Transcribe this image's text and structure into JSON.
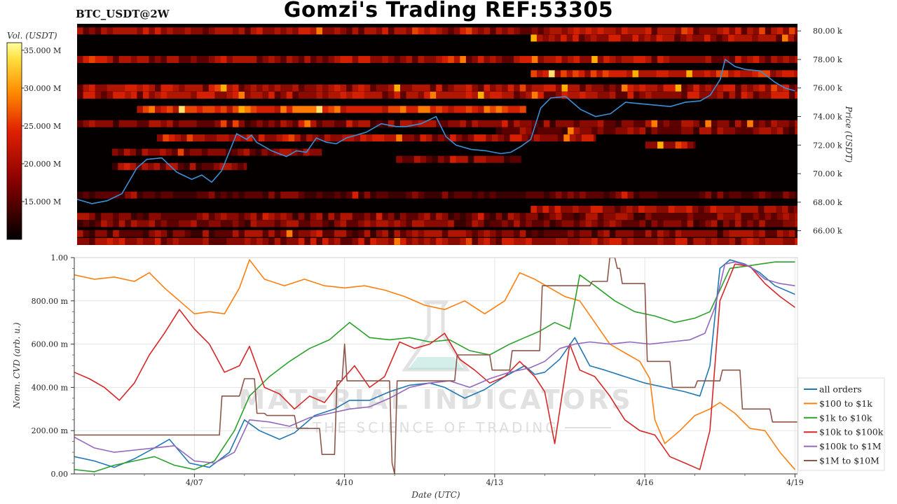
{
  "header": {
    "title": "Gomzi's Trading REF:53305",
    "pair": "BTC_USDT@2W"
  },
  "watermark": {
    "brand": "MATERIAL INDICATORS",
    "tagline": "THE SCIENCE OF TRADING"
  },
  "colors": {
    "all_orders": "#1f77b4",
    "b100_1k": "#ff7f0e",
    "b1k_10k": "#2ca02c",
    "b10k_100k": "#d62728",
    "b100k_1m": "#9467bd",
    "b1m_10m": "#8c564b",
    "price_line": "#3a8fd6",
    "heatmap_bg": "#050000"
  },
  "chart_data": [
    {
      "type": "heatmap",
      "name_panel": "orderbook-heatmap",
      "ylabel": "Price (USDT)",
      "ylim": [
        65000,
        80500
      ],
      "yticks": [
        66000,
        68000,
        70000,
        72000,
        74000,
        76000,
        78000,
        80000
      ],
      "ytick_labels": [
        "66.00 k",
        "68.00 k",
        "70.00 k",
        "72.00 k",
        "74.00 k",
        "76.00 k",
        "78.00 k",
        "80.00 k"
      ],
      "colorbar": {
        "label": "Vol. (USDT)",
        "range": [
          10,
          36
        ],
        "ticks": [
          15,
          20,
          25,
          30,
          35
        ],
        "tick_labels": [
          "15.000 M",
          "20.000 M",
          "25.000 M",
          "30.000 M",
          "35.000 M"
        ]
      },
      "xlim": [
        4.6,
        19.05
      ],
      "price_series": {
        "x": [
          4.6,
          4.9,
          5.2,
          5.5,
          5.8,
          6.0,
          6.3,
          6.6,
          6.9,
          7.1,
          7.3,
          7.5,
          7.8,
          8.0,
          8.1,
          8.2,
          8.5,
          8.8,
          9.0,
          9.2,
          9.4,
          9.6,
          9.8,
          10.0,
          10.2,
          10.4,
          10.7,
          11.0,
          11.2,
          11.5,
          11.8,
          12.0,
          12.2,
          12.5,
          12.8,
          13.1,
          13.3,
          13.5,
          13.7,
          13.9,
          14.1,
          14.4,
          14.7,
          15.0,
          15.3,
          15.6,
          15.9,
          16.2,
          16.5,
          16.8,
          17.1,
          17.3,
          17.5,
          17.6,
          17.8,
          18.0,
          18.3,
          18.6,
          18.8,
          19.0
        ],
        "y": [
          68200,
          67900,
          68100,
          68600,
          70400,
          71000,
          71100,
          70100,
          69600,
          69900,
          69400,
          70200,
          72800,
          72400,
          72700,
          72200,
          71600,
          71200,
          71600,
          71500,
          72500,
          72200,
          72100,
          72500,
          72700,
          72900,
          73500,
          73300,
          73300,
          73500,
          74000,
          72600,
          72000,
          71700,
          71600,
          71400,
          71500,
          71900,
          72400,
          74600,
          75300,
          75400,
          74500,
          74000,
          74200,
          75000,
          74900,
          74800,
          74700,
          75000,
          75100,
          75500,
          76600,
          78000,
          77500,
          77300,
          77200,
          76400,
          76000,
          75800
        ]
      }
    },
    {
      "type": "line",
      "name_panel": "cvd-chart",
      "xlabel": "Date (UTC)",
      "ylabel": "Norm. CVD (arb. u.)",
      "xlim": [
        4.6,
        19.05
      ],
      "ylim": [
        0,
        1
      ],
      "xticks": [
        7,
        10,
        13,
        16,
        19
      ],
      "xtick_labels": [
        "4/07",
        "4/10",
        "4/13",
        "4/16",
        "4/19"
      ],
      "yticks": [
        0,
        0.2,
        0.4,
        0.6,
        0.8,
        1.0
      ],
      "ytick_labels": [
        "0.00",
        "200.00 m",
        "400.00 m",
        "600.00 m",
        "800.00 m",
        "1.00"
      ],
      "series": [
        {
          "name": "all orders",
          "color_key": "all_orders",
          "x": [
            4.6,
            5.0,
            5.4,
            5.8,
            6.2,
            6.5,
            6.9,
            7.3,
            7.7,
            8.0,
            8.3,
            8.7,
            9.0,
            9.4,
            9.8,
            10.1,
            10.5,
            10.9,
            11.3,
            11.7,
            12.0,
            12.4,
            12.8,
            13.2,
            13.6,
            13.8,
            14.0,
            14.3,
            14.6,
            14.9,
            15.2,
            15.6,
            16.0,
            16.4,
            16.8,
            17.1,
            17.3,
            17.5,
            17.7,
            18.0,
            18.3,
            18.6,
            19.0
          ],
          "y": [
            0.08,
            0.06,
            0.03,
            0.07,
            0.12,
            0.16,
            0.05,
            0.03,
            0.1,
            0.25,
            0.2,
            0.16,
            0.19,
            0.27,
            0.3,
            0.34,
            0.34,
            0.38,
            0.41,
            0.42,
            0.4,
            0.35,
            0.39,
            0.45,
            0.5,
            0.46,
            0.47,
            0.53,
            0.63,
            0.5,
            0.48,
            0.45,
            0.42,
            0.4,
            0.38,
            0.36,
            0.5,
            0.95,
            0.99,
            0.97,
            0.93,
            0.87,
            0.83
          ]
        },
        {
          "name": "$100 to $1k",
          "color_key": "b100_1k",
          "x": [
            4.6,
            5.0,
            5.4,
            5.8,
            6.1,
            6.4,
            6.7,
            7.0,
            7.3,
            7.6,
            7.9,
            8.1,
            8.4,
            8.8,
            9.2,
            9.6,
            10.0,
            10.4,
            10.8,
            11.2,
            11.6,
            12.0,
            12.4,
            12.8,
            13.2,
            13.5,
            13.8,
            14.1,
            14.4,
            14.7,
            15.0,
            15.3,
            15.6,
            15.9,
            16.1,
            16.2,
            16.4,
            16.7,
            17.0,
            17.3,
            17.5,
            17.8,
            18.1,
            18.4,
            18.7,
            19.0
          ],
          "y": [
            0.92,
            0.9,
            0.91,
            0.89,
            0.93,
            0.86,
            0.8,
            0.74,
            0.75,
            0.74,
            0.86,
            0.99,
            0.9,
            0.87,
            0.9,
            0.87,
            0.86,
            0.87,
            0.85,
            0.82,
            0.78,
            0.76,
            0.8,
            0.74,
            0.8,
            0.93,
            0.9,
            0.86,
            0.82,
            0.8,
            0.7,
            0.6,
            0.56,
            0.52,
            0.44,
            0.25,
            0.14,
            0.2,
            0.27,
            0.3,
            0.33,
            0.28,
            0.21,
            0.2,
            0.1,
            0.02
          ]
        },
        {
          "name": "$1k to $10k",
          "color_key": "b1k_10k",
          "x": [
            4.6,
            5.0,
            5.4,
            5.8,
            6.2,
            6.6,
            7.0,
            7.4,
            7.8,
            8.1,
            8.5,
            8.9,
            9.3,
            9.7,
            10.1,
            10.5,
            10.9,
            11.3,
            11.7,
            12.1,
            12.5,
            12.9,
            13.3,
            13.6,
            13.9,
            14.2,
            14.5,
            14.7,
            15.0,
            15.4,
            15.8,
            16.2,
            16.6,
            17.0,
            17.3,
            17.5,
            17.7,
            18.0,
            18.3,
            18.6,
            19.0
          ],
          "y": [
            0.02,
            0.01,
            0.04,
            0.06,
            0.08,
            0.04,
            0.02,
            0.06,
            0.2,
            0.36,
            0.45,
            0.52,
            0.58,
            0.62,
            0.7,
            0.63,
            0.62,
            0.63,
            0.61,
            0.62,
            0.57,
            0.55,
            0.6,
            0.63,
            0.66,
            0.7,
            0.67,
            0.92,
            0.87,
            0.8,
            0.75,
            0.73,
            0.7,
            0.72,
            0.75,
            0.85,
            0.95,
            0.96,
            0.97,
            0.98,
            0.98
          ]
        },
        {
          "name": "$10k to $100k",
          "color_key": "b10k_100k",
          "x": [
            4.6,
            4.9,
            5.2,
            5.5,
            5.8,
            6.1,
            6.4,
            6.7,
            7.0,
            7.3,
            7.6,
            7.9,
            8.1,
            8.4,
            8.7,
            9.0,
            9.3,
            9.6,
            9.9,
            10.2,
            10.5,
            10.8,
            11.1,
            11.4,
            11.7,
            12.0,
            12.3,
            12.6,
            12.9,
            13.2,
            13.5,
            13.8,
            14.0,
            14.2,
            14.5,
            14.7,
            15.0,
            15.3,
            15.6,
            15.9,
            16.2,
            16.5,
            16.8,
            17.1,
            17.3,
            17.5,
            17.8,
            18.1,
            18.4,
            18.7,
            19.0
          ],
          "y": [
            0.47,
            0.44,
            0.4,
            0.34,
            0.42,
            0.55,
            0.65,
            0.76,
            0.67,
            0.6,
            0.47,
            0.5,
            0.59,
            0.4,
            0.37,
            0.3,
            0.36,
            0.33,
            0.42,
            0.5,
            0.4,
            0.45,
            0.61,
            0.58,
            0.6,
            0.65,
            0.53,
            0.48,
            0.42,
            0.45,
            0.52,
            0.45,
            0.38,
            0.14,
            0.6,
            0.48,
            0.45,
            0.36,
            0.25,
            0.2,
            0.18,
            0.08,
            0.05,
            0.02,
            0.2,
            0.8,
            0.97,
            0.96,
            0.88,
            0.82,
            0.77
          ]
        },
        {
          "name": "$100k to $1M",
          "color_key": "b100k_1m",
          "x": [
            4.6,
            5.0,
            5.4,
            5.8,
            6.2,
            6.6,
            7.0,
            7.4,
            7.8,
            8.1,
            8.5,
            8.9,
            9.3,
            9.7,
            10.1,
            10.5,
            10.9,
            11.3,
            11.7,
            12.1,
            12.5,
            12.9,
            13.3,
            13.7,
            14.0,
            14.3,
            14.6,
            14.9,
            15.3,
            15.7,
            16.1,
            16.5,
            16.9,
            17.2,
            17.4,
            17.6,
            17.8,
            18.1,
            18.4,
            18.7,
            19.0
          ],
          "y": [
            0.17,
            0.12,
            0.1,
            0.11,
            0.12,
            0.13,
            0.06,
            0.05,
            0.1,
            0.25,
            0.24,
            0.22,
            0.26,
            0.28,
            0.3,
            0.31,
            0.35,
            0.4,
            0.42,
            0.43,
            0.4,
            0.44,
            0.47,
            0.49,
            0.52,
            0.58,
            0.6,
            0.61,
            0.6,
            0.61,
            0.6,
            0.61,
            0.62,
            0.65,
            0.77,
            0.97,
            0.98,
            0.96,
            0.9,
            0.88,
            0.87
          ]
        },
        {
          "name": "$1M to $10M",
          "color_key": "b1m_10m",
          "x": [
            4.6,
            7.5,
            7.55,
            7.9,
            8.0,
            8.2,
            8.25,
            8.4,
            8.45,
            9.0,
            9.05,
            9.5,
            9.55,
            9.8,
            9.85,
            9.95,
            10.0,
            10.05,
            10.1,
            10.9,
            10.95,
            11.0,
            11.05,
            12.2,
            12.25,
            12.9,
            12.95,
            13.3,
            13.35,
            13.9,
            13.95,
            14.4,
            14.45,
            14.9,
            14.95,
            15.25,
            15.3,
            15.4,
            15.45,
            15.5,
            15.55,
            16.0,
            16.05,
            16.5,
            16.55,
            17.0,
            17.05,
            17.5,
            17.55,
            17.9,
            17.95,
            18.5,
            18.55,
            19.05
          ],
          "y": [
            0.18,
            0.18,
            0.36,
            0.36,
            0.44,
            0.44,
            0.28,
            0.28,
            0.27,
            0.27,
            0.21,
            0.21,
            0.09,
            0.09,
            0.43,
            0.43,
            0.6,
            0.43,
            0.43,
            0.43,
            0.05,
            0.0,
            0.43,
            0.43,
            0.55,
            0.55,
            0.48,
            0.48,
            0.57,
            0.57,
            0.87,
            0.87,
            0.87,
            0.87,
            0.89,
            0.89,
            1.0,
            1.0,
            0.95,
            0.95,
            0.88,
            0.88,
            0.52,
            0.52,
            0.4,
            0.4,
            0.43,
            0.43,
            0.48,
            0.48,
            0.3,
            0.3,
            0.24,
            0.24
          ]
        }
      ]
    }
  ]
}
